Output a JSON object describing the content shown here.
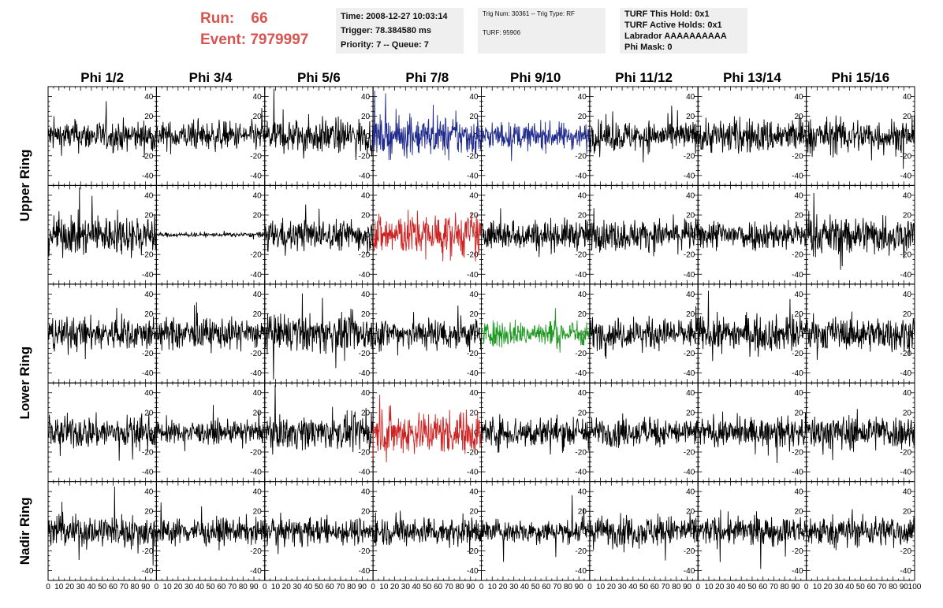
{
  "run": {
    "run_label": "Run:",
    "run_value": "66",
    "event_label": "Event:",
    "event_value": "7979997"
  },
  "info1": {
    "time": "Time: 2008-12-27 10:03:14",
    "trigger": "Trigger: 78.384580 ms",
    "priority": "Priority: 7 -- Queue: 7"
  },
  "info2": {
    "trig": "Trig Num: 30361 -- Trig Type: RF",
    "turf": "TURF: 95906"
  },
  "info3": {
    "this_hold": "TURF This Hold: 0x1",
    "active_holds": "TURF Active Holds: 0x1",
    "labrador": "Labrador AAAAAAAAAA",
    "phi_mask": "Phi Mask: 0"
  },
  "colors": {
    "default": "#000000",
    "upper": "#1f2a8c",
    "hpol": "#cc2222",
    "lower": "#1f9922",
    "header_red": "#d9534f"
  },
  "chart_data": {
    "type": "line",
    "columns": [
      "Phi 1/2",
      "Phi 3/4",
      "Phi 5/6",
      "Phi 7/8",
      "Phi 9/10",
      "Phi 11/12",
      "Phi 13/14",
      "Phi 15/16"
    ],
    "rows": [
      "Upper Ring",
      "Lower Ring",
      "Nadir Ring"
    ],
    "row_label_positions_note": "",
    "x_ticks": [
      "0",
      "10",
      "20",
      "30",
      "40",
      "50",
      "60",
      "70",
      "80",
      "90",
      "100"
    ],
    "xlim": [
      0,
      100
    ],
    "y_ticks": [
      "-40",
      "-20",
      "0",
      "20",
      "40"
    ],
    "ylim": [
      -50,
      50
    ],
    "panels": [
      {
        "row": 0,
        "col": 0,
        "color": "default",
        "amp": 14
      },
      {
        "row": 0,
        "col": 1,
        "color": "default",
        "amp": 13
      },
      {
        "row": 0,
        "col": 2,
        "color": "default",
        "amp": 16
      },
      {
        "row": 0,
        "col": 3,
        "color": "upper",
        "amp": 18
      },
      {
        "row": 0,
        "col": 4,
        "color": "upper",
        "amp": 12
      },
      {
        "row": 0,
        "col": 5,
        "color": "default",
        "amp": 14
      },
      {
        "row": 0,
        "col": 6,
        "color": "default",
        "amp": 16
      },
      {
        "row": 0,
        "col": 7,
        "color": "default",
        "amp": 16
      },
      {
        "row": 1,
        "col": 0,
        "color": "default",
        "amp": 18
      },
      {
        "row": 1,
        "col": 1,
        "color": "default",
        "amp": 2
      },
      {
        "row": 1,
        "col": 2,
        "color": "default",
        "amp": 14
      },
      {
        "row": 1,
        "col": 3,
        "color": "hpol",
        "amp": 20
      },
      {
        "row": 1,
        "col": 4,
        "color": "default",
        "amp": 14
      },
      {
        "row": 1,
        "col": 5,
        "color": "default",
        "amp": 14
      },
      {
        "row": 1,
        "col": 6,
        "color": "default",
        "amp": 14
      },
      {
        "row": 1,
        "col": 7,
        "color": "default",
        "amp": 18
      },
      {
        "row": 2,
        "col": 0,
        "color": "default",
        "amp": 15
      },
      {
        "row": 2,
        "col": 1,
        "color": "default",
        "amp": 14
      },
      {
        "row": 2,
        "col": 2,
        "color": "default",
        "amp": 17
      },
      {
        "row": 2,
        "col": 3,
        "color": "default",
        "amp": 15
      },
      {
        "row": 2,
        "col": 4,
        "color": "lower",
        "amp": 12
      },
      {
        "row": 2,
        "col": 5,
        "color": "default",
        "amp": 14
      },
      {
        "row": 2,
        "col": 6,
        "color": "default",
        "amp": 16
      },
      {
        "row": 2,
        "col": 7,
        "color": "default",
        "amp": 15
      },
      {
        "row": 3,
        "col": 0,
        "color": "default",
        "amp": 15
      },
      {
        "row": 3,
        "col": 1,
        "color": "default",
        "amp": 10
      },
      {
        "row": 3,
        "col": 2,
        "color": "default",
        "amp": 15
      },
      {
        "row": 3,
        "col": 3,
        "color": "hpol",
        "amp": 20
      },
      {
        "row": 3,
        "col": 4,
        "color": "default",
        "amp": 15
      },
      {
        "row": 3,
        "col": 5,
        "color": "default",
        "amp": 13
      },
      {
        "row": 3,
        "col": 6,
        "color": "default",
        "amp": 13
      },
      {
        "row": 3,
        "col": 7,
        "color": "default",
        "amp": 16
      },
      {
        "row": 4,
        "col": 0,
        "color": "default",
        "amp": 15
      },
      {
        "row": 4,
        "col": 1,
        "color": "default",
        "amp": 12
      },
      {
        "row": 4,
        "col": 2,
        "color": "default",
        "amp": 12
      },
      {
        "row": 4,
        "col": 3,
        "color": "default",
        "amp": 13
      },
      {
        "row": 4,
        "col": 4,
        "color": "default",
        "amp": 11
      },
      {
        "row": 4,
        "col": 5,
        "color": "default",
        "amp": 14
      },
      {
        "row": 4,
        "col": 6,
        "color": "default",
        "amp": 13
      },
      {
        "row": 4,
        "col": 7,
        "color": "default",
        "amp": 14
      }
    ]
  }
}
